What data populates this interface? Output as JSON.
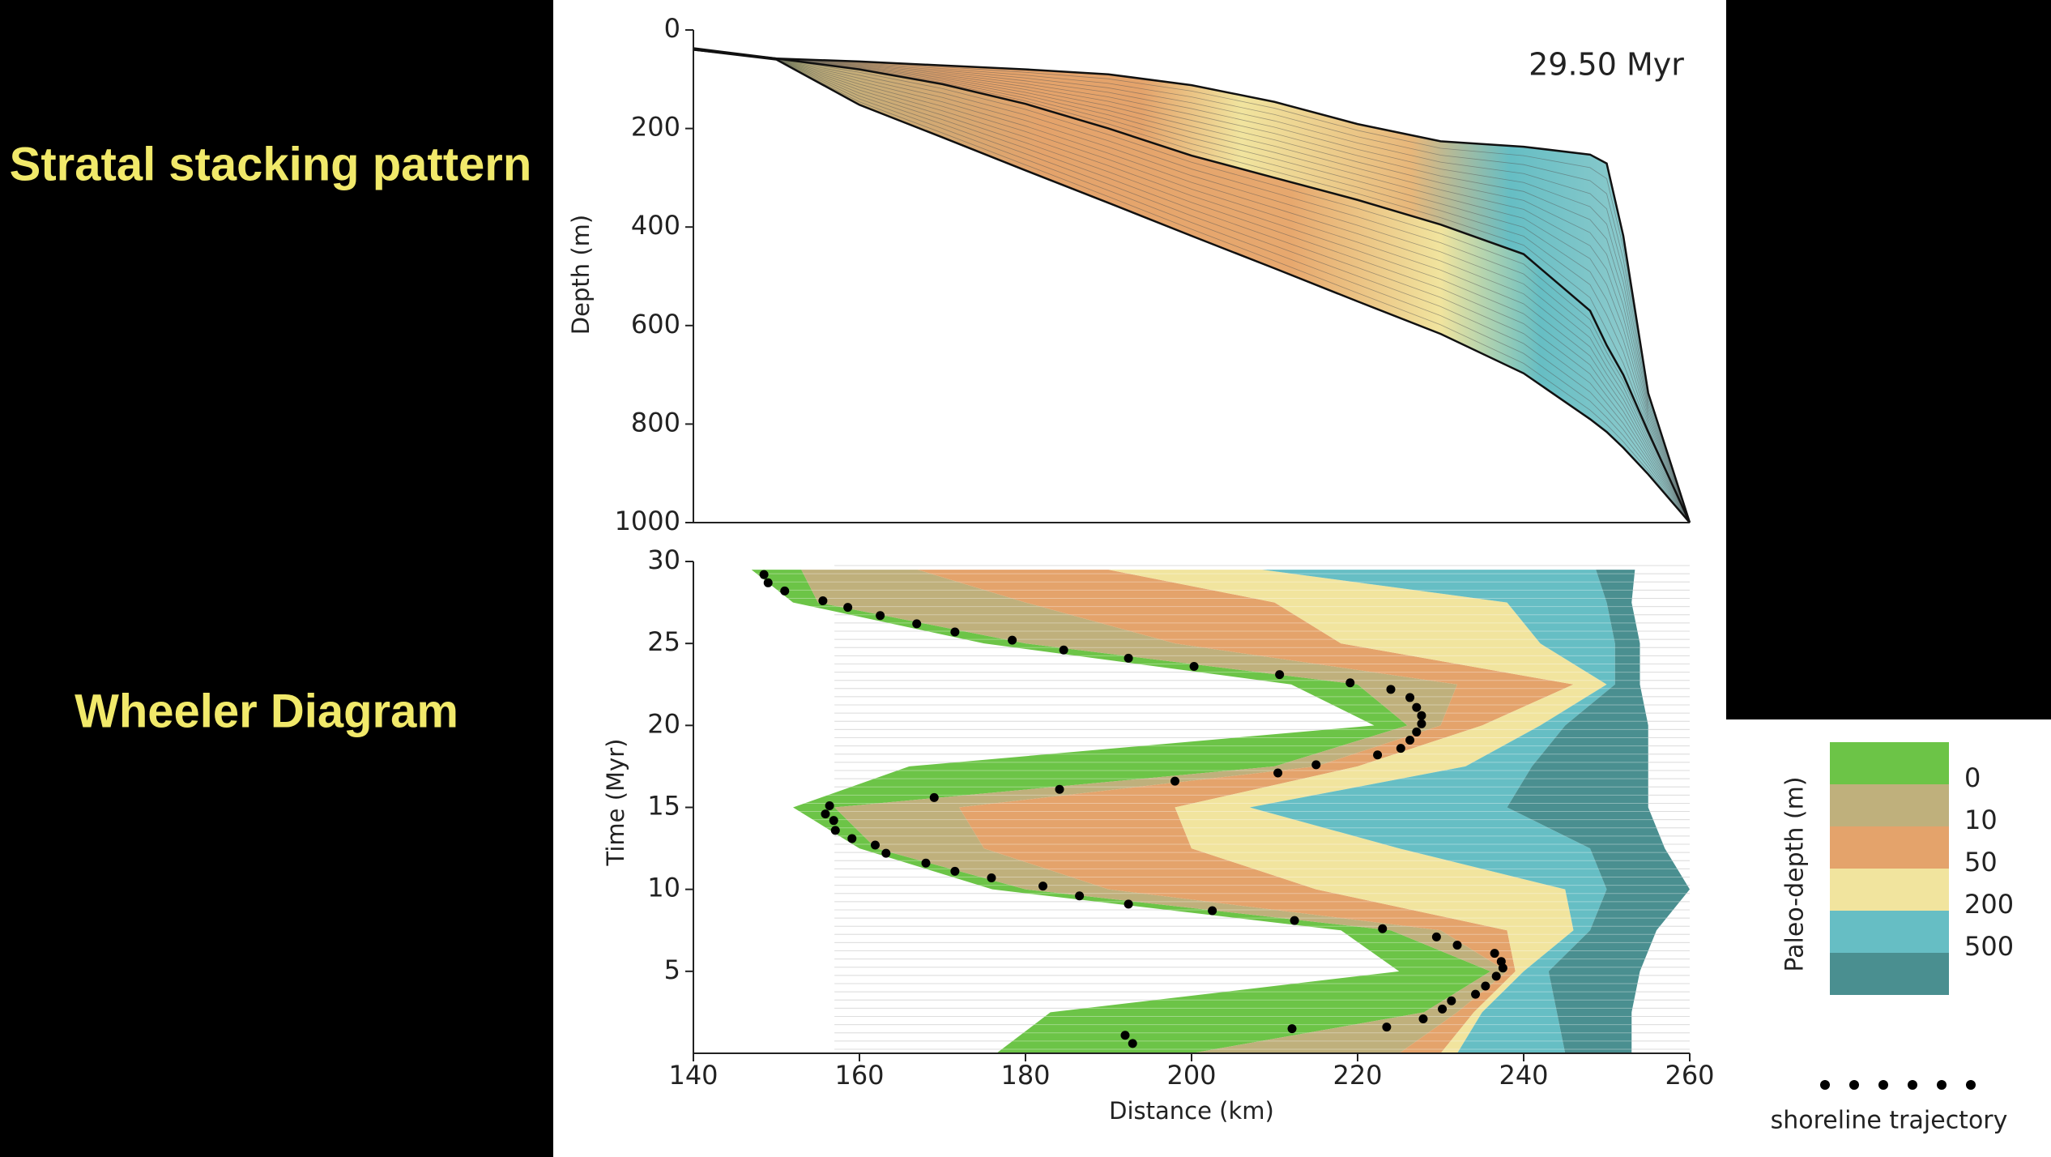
{
  "labels": {
    "stratal": "Stratal stacking pattern",
    "wheeler": "Wheeler Diagram"
  },
  "chart_data": [
    {
      "type": "stratal",
      "annotation": "29.50 Myr",
      "ylabel": "Depth (m)",
      "xlim": [
        140,
        260
      ],
      "ylim": [
        0,
        1000
      ],
      "y_inverted": true,
      "yticks": [
        0,
        200,
        400,
        600,
        800,
        1000
      ],
      "x": [
        140,
        150,
        160,
        170,
        180,
        190,
        200,
        210,
        220,
        230,
        240,
        248,
        250,
        252,
        255,
        260
      ],
      "surfaces": [
        [
          37,
          58,
          64,
          72,
          80,
          90,
          112,
          146,
          191,
          226,
          237,
          253,
          271,
          418,
          737,
          1000
        ],
        [
          40,
          58,
          80,
          110,
          150,
          200,
          255,
          300,
          345,
          395,
          455,
          570,
          640,
          700,
          816,
          1000
        ],
        [
          40,
          60,
          152,
          218,
          285,
          351,
          418,
          484,
          551,
          617,
          697,
          790,
          816,
          848,
          902,
          1000
        ]
      ]
    },
    {
      "type": "wheeler",
      "xlabel": "Distance (km)",
      "ylabel": "Time (Myr)",
      "xlim": [
        140,
        260
      ],
      "ylim": [
        0,
        30
      ],
      "xticks": [
        140,
        160,
        180,
        200,
        220,
        240,
        260
      ],
      "yticks": [
        5,
        10,
        15,
        20,
        25,
        30
      ],
      "times": [
        0,
        2.5,
        5,
        7.5,
        10,
        12.5,
        15,
        17.5,
        20,
        22.5,
        25,
        27.5,
        29.5
      ],
      "zones": [
        {
          "left": [
            176.5,
            183,
            225,
            218,
            176,
            160,
            152,
            166,
            222,
            212,
            175,
            152,
            147
          ]
        },
        {
          "left": [
            200,
            228,
            236,
            224,
            180,
            162,
            157,
            210,
            226,
            220,
            180,
            155,
            153
          ]
        },
        {
          "left": [
            225,
            232,
            238,
            230,
            190,
            175,
            172,
            215,
            230,
            232,
            198,
            180,
            167
          ]
        },
        {
          "left": [
            230,
            234,
            239,
            238,
            215,
            200,
            198,
            220,
            235,
            246,
            218,
            210,
            190
          ]
        },
        {
          "left": [
            232,
            235,
            240,
            246,
            245,
            225,
            207,
            233,
            242,
            250,
            242,
            238,
            208.5
          ]
        },
        {
          "left": [
            245,
            244,
            243,
            248,
            250,
            248,
            238,
            241,
            245,
            251,
            251,
            250,
            248.7
          ]
        }
      ],
      "right_edge": [
        253,
        253,
        254,
        256,
        260,
        257,
        255,
        255,
        255,
        254,
        254,
        253,
        253.4
      ],
      "shoreline": {
        "label": "shoreline trajectory",
        "color": "#000000",
        "x": [
          148.5,
          149.0,
          151.0,
          155.6,
          158.6,
          162.5,
          166.9,
          171.5,
          178.4,
          184.6,
          192.4,
          200.3,
          210.6,
          219.1,
          224.0,
          226.3,
          227.1,
          227.7,
          227.7,
          227.1,
          226.3,
          225.2,
          222.4,
          215.0,
          210.4,
          198.0,
          184.1,
          169.0,
          156.4,
          155.9,
          156.9,
          157.1,
          159.1,
          161.9,
          163.2,
          168.0,
          171.5,
          175.9,
          182.1,
          186.5,
          192.4,
          202.5,
          212.4,
          223.0,
          229.5,
          232.0,
          236.5,
          237.3,
          237.5,
          236.7,
          235.4,
          234.2,
          231.3,
          230.2,
          227.9,
          223.5,
          212.1,
          192.0,
          192.9
        ],
        "y": [
          29.2,
          28.7,
          28.2,
          27.6,
          27.2,
          26.7,
          26.2,
          25.7,
          25.2,
          24.6,
          24.1,
          23.6,
          23.1,
          22.6,
          22.2,
          21.7,
          21.1,
          20.6,
          20.1,
          19.6,
          19.1,
          18.6,
          18.2,
          17.6,
          17.1,
          16.6,
          16.1,
          15.6,
          15.1,
          14.6,
          14.2,
          13.6,
          13.1,
          12.7,
          12.2,
          11.6,
          11.1,
          10.7,
          10.2,
          9.6,
          9.1,
          8.7,
          8.1,
          7.6,
          7.1,
          6.6,
          6.1,
          5.6,
          5.2,
          4.7,
          4.1,
          3.6,
          3.2,
          2.7,
          2.1,
          1.6,
          1.5,
          1.1,
          0.6
        ]
      },
      "colorbar": {
        "title": "Paleo-depth (m)",
        "ticks": [
          0,
          10,
          50,
          200,
          500
        ],
        "colors": [
          "#6cc447",
          "#bfb07c",
          "#e4a36b",
          "#f1e49e",
          "#66bec4",
          "#4a8f90"
        ]
      }
    }
  ]
}
